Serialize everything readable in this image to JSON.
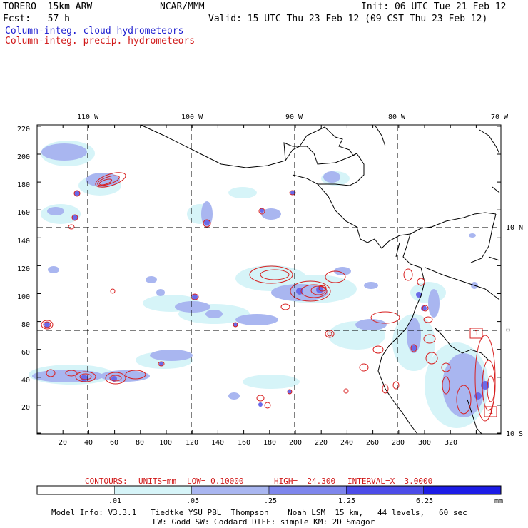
{
  "header": {
    "model": "TORERO  15km ARW",
    "center": "NCAR/MMM",
    "init": "Init: 06 UTC Tue 21 Feb 12",
    "fcst": "Fcst:   57 h",
    "valid": "Valid: 15 UTC Thu 23 Feb 12 (09 CST Thu 23 Feb 12)",
    "legend_cloud": "Column-integ. cloud hydrometeors",
    "legend_precip": "Column-integ. precip. hydrometeors"
  },
  "map": {
    "lon_labels": [
      "110 W",
      "100 W",
      "90 W",
      "80 W",
      "70 W"
    ],
    "lat_labels": [
      "10 N",
      "0",
      "10 S"
    ],
    "x_ticks": [
      "20",
      "40",
      "60",
      "80",
      "100",
      "120",
      "140",
      "160",
      "180",
      "200",
      "220",
      "240",
      "260",
      "280",
      "300",
      "320"
    ],
    "y_ticks": [
      "20",
      "40",
      "60",
      "80",
      "100",
      "120",
      "140",
      "160",
      "180",
      "200",
      "220"
    ],
    "box_labels": [
      "1",
      "1"
    ],
    "colors": {
      "shade_light": "#d6f4f8",
      "shade_mid": "#a9b6f0",
      "shade_dark": "#6a6ae8",
      "shade_darkest": "#1c1ce6",
      "contour": "#d82020",
      "coast": "#000000"
    }
  },
  "contour_info": {
    "label": "CONTOURS:",
    "units": "UNITS=mm",
    "low": "LOW= 0.10000",
    "high": "HIGH=  24.300",
    "interval": "INTERVAL=X  3.0000"
  },
  "colorbar": {
    "ticks": [
      ".01",
      ".05",
      ".25",
      "1.25",
      "6.25"
    ],
    "unit": "mm",
    "colors": [
      "#ffffff",
      "#d6f4f8",
      "#a9b6f0",
      "#7e86ec",
      "#4c4ce8",
      "#1c1ce6"
    ]
  },
  "footer": {
    "line1": "Model Info: V3.3.1   Tiedtke YSU PBL  Thompson    Noah LSM  15 km,   44 levels,   60 sec",
    "line2": "LW: Godd SW: Goddard DIFF: simple KM: 2D Smagor"
  }
}
